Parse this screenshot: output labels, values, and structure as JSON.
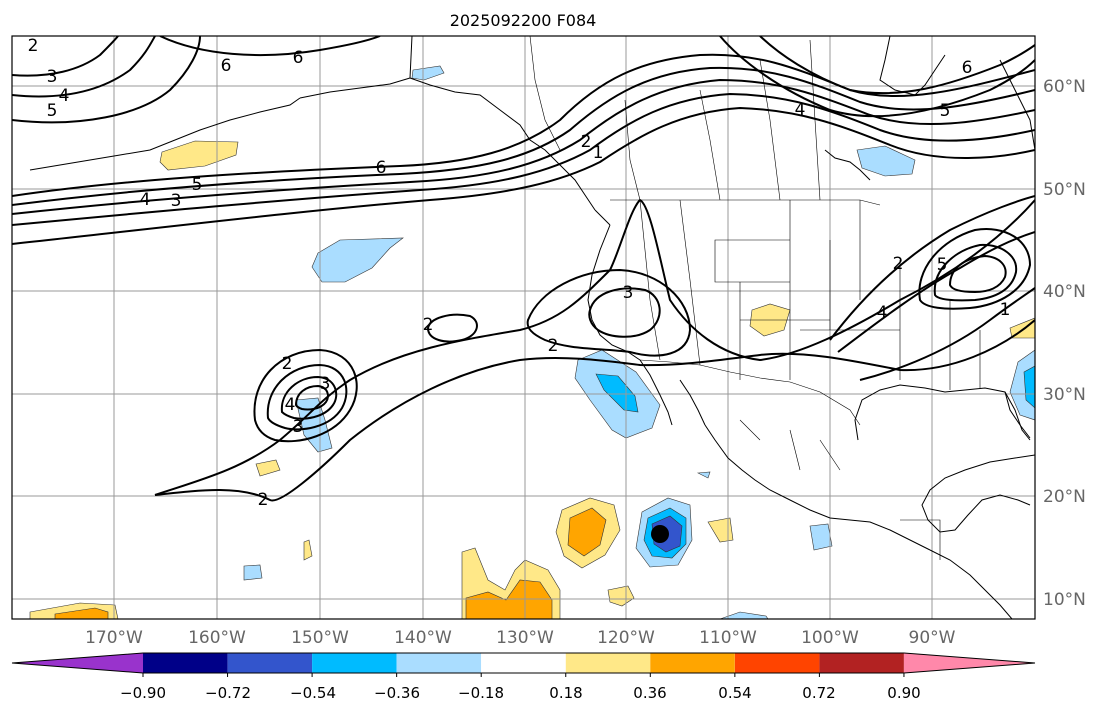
{
  "title": "2025092200 F084",
  "axes": {
    "lon_labels": [
      "170°W",
      "160°W",
      "150°W",
      "140°W",
      "130°W",
      "120°W",
      "110°W",
      "100°W",
      "90°W"
    ],
    "lat_labels": [
      "60°N",
      "50°N",
      "40°N",
      "30°N",
      "20°N",
      "10°N"
    ]
  },
  "colorbar": {
    "ticks": [
      "−0.90",
      "−0.72",
      "−0.54",
      "−0.36",
      "−0.18",
      "0.18",
      "0.36",
      "0.54",
      "0.72",
      "0.90"
    ],
    "colors": [
      "#9933cc",
      "#000088",
      "#3355cc",
      "#00bbff",
      "#aaddff",
      "#ffffff",
      "#ffe888",
      "#ffa500",
      "#ff4400",
      "#b22222",
      "#ff88aa"
    ]
  },
  "contour_labels": {
    "nw_2": "2",
    "nw_3": "3",
    "nw_4": "4",
    "nw_5": "5",
    "top_6a": "6",
    "top_6b": "6",
    "mid_6": "6",
    "mid_5": "5",
    "mid_4": "4",
    "mid_3": "3",
    "ak_2": "2",
    "ak_1": "1",
    "ne_6": "6",
    "ne_5": "5",
    "ne_4": "4",
    "low_2": "2",
    "low_3": "3",
    "low_4": "4",
    "low_3b": "3",
    "pac_2": "2",
    "pac_2b": "2",
    "cal_3": "3",
    "cal_2": "2",
    "e_2": "2",
    "e_5": "5",
    "e_4": "4",
    "e_1": "1"
  }
}
